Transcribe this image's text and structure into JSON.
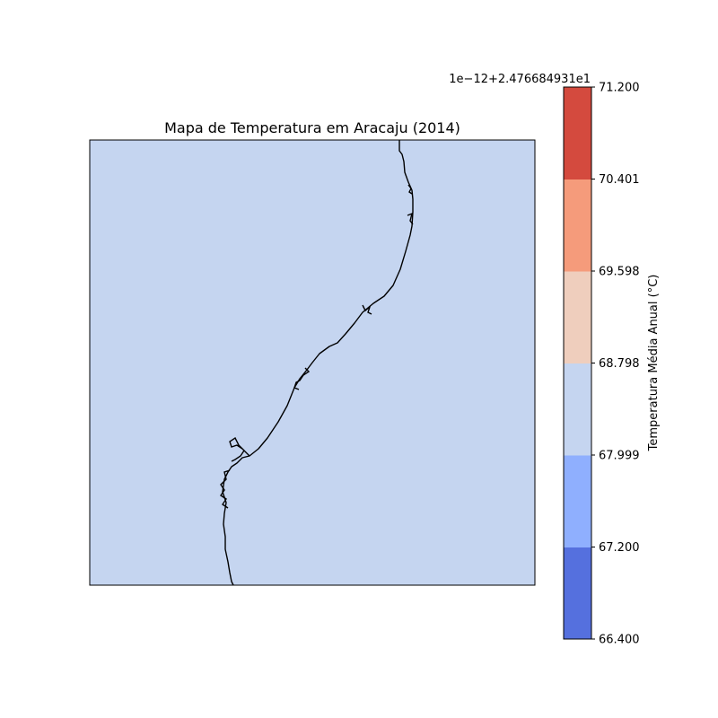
{
  "map": {
    "title": "Mapa de Temperatura em Aracaju (2014)",
    "fill_color": "#c5d5f0",
    "coastline_color": "#000000"
  },
  "colorbar": {
    "offset_label": "1e−12+2.476684931e1",
    "label": "Temperatura Média Anual (°C)",
    "ticks": [
      "66.400",
      "67.200",
      "67.999",
      "68.798",
      "69.598",
      "70.401",
      "71.200"
    ],
    "bands": [
      {
        "color": "#5570de"
      },
      {
        "color": "#8faffe"
      },
      {
        "color": "#c5d5f0"
      },
      {
        "color": "#efcebd"
      },
      {
        "color": "#f59b7b"
      },
      {
        "color": "#d44a3e"
      }
    ]
  }
}
